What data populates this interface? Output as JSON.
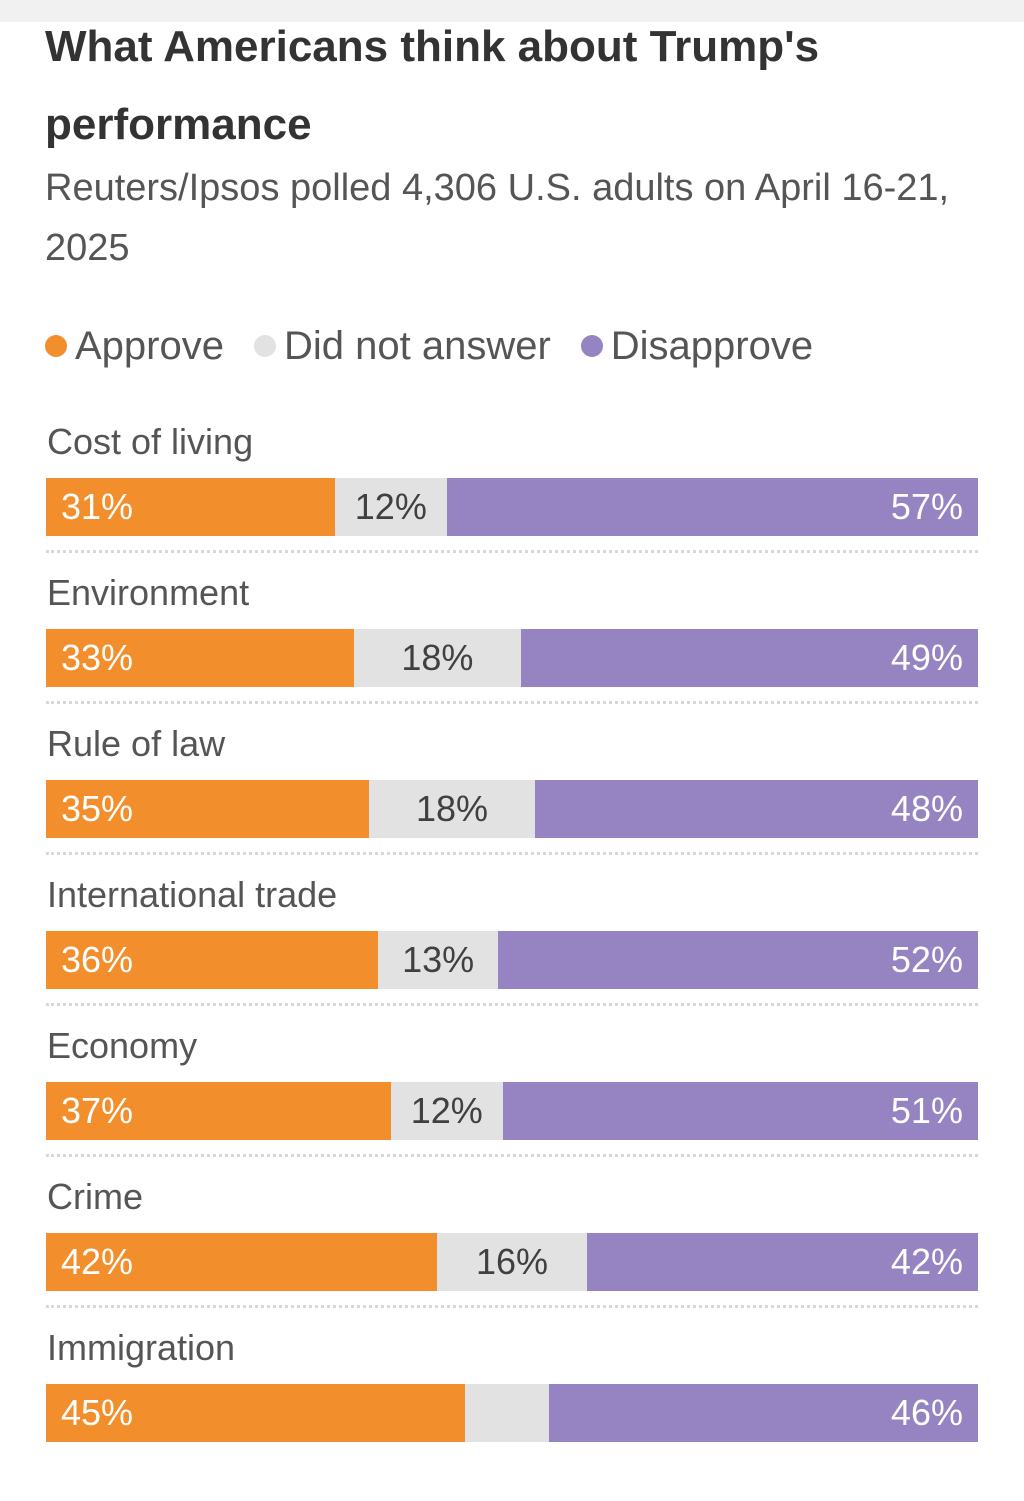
{
  "chart_data": {
    "type": "bar",
    "orientation": "horizontal-stacked-100",
    "title": "What Americans think about Trump's performance",
    "subtitle": "Reuters/Ipsos polled 4,306 U.S. adults on April 16-21, 2025",
    "legend_position": "top-left",
    "categories": [
      "Cost of living",
      "Environment",
      "Rule of law",
      "International trade",
      "Economy",
      "Crime",
      "Immigration"
    ],
    "series": [
      {
        "name": "Approve",
        "color": "#f28e2b",
        "values": [
          31,
          33,
          35,
          36,
          37,
          42,
          45
        ],
        "labels": [
          "31%",
          "33%",
          "35%",
          "36%",
          "37%",
          "42%",
          "45%"
        ]
      },
      {
        "name": "Did not answer",
        "color": "#e2e2e2",
        "values": [
          12,
          18,
          18,
          13,
          12,
          16,
          9
        ],
        "labels": [
          "12%",
          "18%",
          "18%",
          "13%",
          "12%",
          "16%",
          ""
        ]
      },
      {
        "name": "Disapprove",
        "color": "#9684c2",
        "values": [
          57,
          49,
          48,
          52,
          51,
          42,
          46
        ],
        "labels": [
          "57%",
          "49%",
          "48%",
          "52%",
          "51%",
          "42%",
          "46%"
        ]
      }
    ]
  }
}
